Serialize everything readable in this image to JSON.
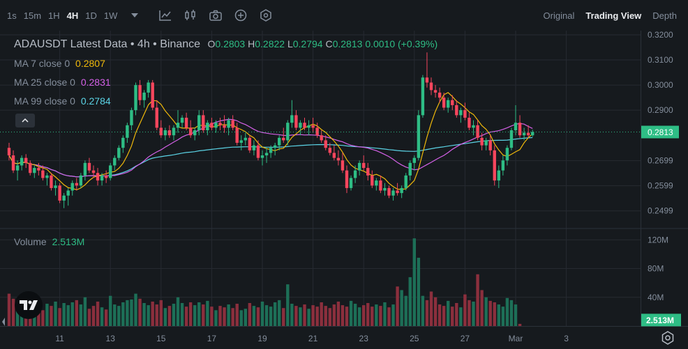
{
  "toolbar": {
    "intervals": [
      "1s",
      "15m",
      "1H",
      "4H",
      "1D",
      "1W"
    ],
    "active_interval": "4H",
    "views": [
      "Original",
      "Trading View",
      "Depth"
    ],
    "active_view": "Trading View"
  },
  "legend": {
    "title": "ADAUSDT Latest Data • 4h • Binance",
    "ohlc": [
      {
        "label": "O",
        "value": "0.2803"
      },
      {
        "label": "H",
        "value": "0.2822"
      },
      {
        "label": "L",
        "value": "0.2794"
      },
      {
        "label": "C",
        "value": "0.2813"
      }
    ],
    "change": "0.0010 (+0.39%)",
    "ma": [
      {
        "label": "MA 7 close 0",
        "value": "0.2807",
        "color": "#f0b90b"
      },
      {
        "label": "MA 25 close 0",
        "value": "0.2831",
        "color": "#d561e8"
      },
      {
        "label": "MA 99 close 0",
        "value": "0.2784",
        "color": "#5bd4e6"
      }
    ],
    "volume_label": "Volume",
    "volume_value": "2.513M"
  },
  "colors": {
    "up": "#2ebd85",
    "down": "#f6465d",
    "vol_up": "#1d6f57",
    "vol_down": "#8b2f3d",
    "background": "#161a1e",
    "grid": "#262a31"
  },
  "chart_data": {
    "type": "candlestick",
    "symbol": "ADAUSDT",
    "interval": "4h",
    "exchange": "Binance",
    "price_axis_ticks": [
      "0.3200",
      "0.3100",
      "0.3000",
      "0.2900",
      "0.2699",
      "0.2599",
      "0.2499"
    ],
    "price_range": [
      0.244,
      0.32
    ],
    "volume_axis_ticks": [
      "120M",
      "80M",
      "40M"
    ],
    "volume_range": [
      0,
      128
    ],
    "last_price": "0.2813",
    "last_volume": "2.513M",
    "x_tick_labels": [
      "11",
      "13",
      "15",
      "17",
      "19",
      "21",
      "23",
      "25",
      "27",
      "Mar",
      "3"
    ],
    "x_tick_index": [
      12,
      24,
      36,
      48,
      60,
      72,
      84,
      96,
      108,
      120,
      132
    ],
    "candles": [
      [
        0.275,
        0.277,
        0.27,
        0.272
      ],
      [
        0.272,
        0.274,
        0.265,
        0.266
      ],
      [
        0.266,
        0.27,
        0.262,
        0.268
      ],
      [
        0.268,
        0.272,
        0.266,
        0.271
      ],
      [
        0.271,
        0.2725,
        0.267,
        0.269
      ],
      [
        0.269,
        0.27,
        0.264,
        0.265
      ],
      [
        0.265,
        0.268,
        0.263,
        0.267
      ],
      [
        0.267,
        0.269,
        0.264,
        0.266
      ],
      [
        0.266,
        0.268,
        0.262,
        0.263
      ],
      [
        0.263,
        0.265,
        0.26,
        0.264
      ],
      [
        0.264,
        0.265,
        0.258,
        0.259
      ],
      [
        0.259,
        0.262,
        0.256,
        0.26
      ],
      [
        0.26,
        0.261,
        0.253,
        0.254
      ],
      [
        0.254,
        0.257,
        0.251,
        0.256
      ],
      [
        0.256,
        0.259,
        0.252,
        0.258
      ],
      [
        0.258,
        0.262,
        0.256,
        0.261
      ],
      [
        0.261,
        0.263,
        0.258,
        0.26
      ],
      [
        0.26,
        0.265,
        0.259,
        0.264
      ],
      [
        0.264,
        0.27,
        0.262,
        0.269
      ],
      [
        0.269,
        0.271,
        0.265,
        0.266
      ],
      [
        0.266,
        0.268,
        0.263,
        0.265
      ],
      [
        0.265,
        0.267,
        0.26,
        0.262
      ],
      [
        0.262,
        0.265,
        0.26,
        0.264
      ],
      [
        0.264,
        0.266,
        0.261,
        0.263
      ],
      [
        0.263,
        0.269,
        0.262,
        0.268
      ],
      [
        0.268,
        0.272,
        0.266,
        0.271
      ],
      [
        0.271,
        0.276,
        0.27,
        0.275
      ],
      [
        0.275,
        0.28,
        0.273,
        0.279
      ],
      [
        0.279,
        0.285,
        0.277,
        0.284
      ],
      [
        0.284,
        0.291,
        0.282,
        0.29
      ],
      [
        0.29,
        0.301,
        0.288,
        0.3
      ],
      [
        0.3,
        0.302,
        0.292,
        0.294
      ],
      [
        0.294,
        0.298,
        0.291,
        0.297
      ],
      [
        0.297,
        0.302,
        0.295,
        0.301
      ],
      [
        0.301,
        0.302,
        0.29,
        0.291
      ],
      [
        0.291,
        0.294,
        0.282,
        0.283
      ],
      [
        0.283,
        0.286,
        0.279,
        0.28
      ],
      [
        0.28,
        0.283,
        0.278,
        0.282
      ],
      [
        0.282,
        0.284,
        0.279,
        0.28
      ],
      [
        0.28,
        0.284,
        0.278,
        0.283
      ],
      [
        0.283,
        0.29,
        0.281,
        0.285
      ],
      [
        0.285,
        0.288,
        0.283,
        0.287
      ],
      [
        0.287,
        0.289,
        0.282,
        0.283
      ],
      [
        0.283,
        0.286,
        0.279,
        0.28
      ],
      [
        0.28,
        0.283,
        0.278,
        0.282
      ],
      [
        0.282,
        0.29,
        0.28,
        0.288
      ],
      [
        0.288,
        0.29,
        0.281,
        0.282
      ],
      [
        0.282,
        0.286,
        0.28,
        0.285
      ],
      [
        0.285,
        0.287,
        0.282,
        0.283
      ],
      [
        0.283,
        0.286,
        0.281,
        0.285
      ],
      [
        0.285,
        0.287,
        0.282,
        0.284
      ],
      [
        0.284,
        0.288,
        0.281,
        0.283
      ],
      [
        0.283,
        0.287,
        0.28,
        0.286
      ],
      [
        0.286,
        0.288,
        0.282,
        0.283
      ],
      [
        0.283,
        0.285,
        0.276,
        0.277
      ],
      [
        0.277,
        0.28,
        0.274,
        0.278
      ],
      [
        0.278,
        0.281,
        0.276,
        0.279
      ],
      [
        0.279,
        0.28,
        0.273,
        0.274
      ],
      [
        0.274,
        0.278,
        0.272,
        0.276
      ],
      [
        0.276,
        0.278,
        0.27,
        0.271
      ],
      [
        0.271,
        0.274,
        0.268,
        0.272
      ],
      [
        0.272,
        0.275,
        0.269,
        0.273
      ],
      [
        0.273,
        0.276,
        0.271,
        0.275
      ],
      [
        0.275,
        0.277,
        0.272,
        0.276
      ],
      [
        0.276,
        0.28,
        0.274,
        0.279
      ],
      [
        0.279,
        0.283,
        0.277,
        0.278
      ],
      [
        0.278,
        0.286,
        0.276,
        0.285
      ],
      [
        0.285,
        0.294,
        0.283,
        0.288
      ],
      [
        0.288,
        0.29,
        0.282,
        0.283
      ],
      [
        0.283,
        0.286,
        0.28,
        0.285
      ],
      [
        0.285,
        0.287,
        0.282,
        0.283
      ],
      [
        0.283,
        0.286,
        0.28,
        0.284
      ],
      [
        0.284,
        0.287,
        0.281,
        0.283
      ],
      [
        0.283,
        0.285,
        0.279,
        0.28
      ],
      [
        0.28,
        0.282,
        0.277,
        0.278
      ],
      [
        0.278,
        0.28,
        0.274,
        0.275
      ],
      [
        0.275,
        0.277,
        0.272,
        0.273
      ],
      [
        0.273,
        0.276,
        0.27,
        0.271
      ],
      [
        0.271,
        0.274,
        0.268,
        0.27
      ],
      [
        0.27,
        0.273,
        0.265,
        0.266
      ],
      [
        0.266,
        0.268,
        0.257,
        0.259
      ],
      [
        0.259,
        0.264,
        0.258,
        0.263
      ],
      [
        0.263,
        0.268,
        0.261,
        0.266
      ],
      [
        0.266,
        0.27,
        0.264,
        0.269
      ],
      [
        0.269,
        0.272,
        0.266,
        0.267
      ],
      [
        0.267,
        0.269,
        0.262,
        0.264
      ],
      [
        0.264,
        0.266,
        0.259,
        0.26
      ],
      [
        0.26,
        0.263,
        0.258,
        0.262
      ],
      [
        0.262,
        0.264,
        0.257,
        0.258
      ],
      [
        0.258,
        0.261,
        0.256,
        0.259
      ],
      [
        0.259,
        0.26,
        0.255,
        0.256
      ],
      [
        0.256,
        0.259,
        0.254,
        0.258
      ],
      [
        0.258,
        0.261,
        0.256,
        0.257
      ],
      [
        0.257,
        0.26,
        0.255,
        0.259
      ],
      [
        0.259,
        0.265,
        0.258,
        0.264
      ],
      [
        0.264,
        0.27,
        0.262,
        0.269
      ],
      [
        0.269,
        0.272,
        0.266,
        0.271
      ],
      [
        0.271,
        0.29,
        0.27,
        0.288
      ],
      [
        0.288,
        0.304,
        0.287,
        0.303
      ],
      [
        0.303,
        0.313,
        0.299,
        0.301
      ],
      [
        0.301,
        0.303,
        0.296,
        0.298
      ],
      [
        0.298,
        0.3,
        0.295,
        0.297
      ],
      [
        0.297,
        0.299,
        0.293,
        0.295
      ],
      [
        0.295,
        0.297,
        0.29,
        0.291
      ],
      [
        0.291,
        0.295,
        0.289,
        0.294
      ],
      [
        0.294,
        0.296,
        0.29,
        0.292
      ],
      [
        0.292,
        0.294,
        0.287,
        0.288
      ],
      [
        0.288,
        0.291,
        0.285,
        0.29
      ],
      [
        0.29,
        0.293,
        0.286,
        0.287
      ],
      [
        0.287,
        0.289,
        0.282,
        0.283
      ],
      [
        0.283,
        0.286,
        0.28,
        0.284
      ],
      [
        0.284,
        0.286,
        0.278,
        0.279
      ],
      [
        0.279,
        0.281,
        0.274,
        0.276
      ],
      [
        0.276,
        0.279,
        0.274,
        0.278
      ],
      [
        0.278,
        0.28,
        0.272,
        0.274
      ],
      [
        0.274,
        0.276,
        0.26,
        0.262
      ],
      [
        0.262,
        0.268,
        0.259,
        0.266
      ],
      [
        0.266,
        0.272,
        0.264,
        0.27
      ],
      [
        0.27,
        0.276,
        0.268,
        0.275
      ],
      [
        0.275,
        0.283,
        0.274,
        0.282
      ],
      [
        0.282,
        0.292,
        0.28,
        0.285
      ],
      [
        0.285,
        0.288,
        0.279,
        0.28
      ],
      [
        0.28,
        0.283,
        0.278,
        0.281
      ],
      [
        0.281,
        0.284,
        0.279,
        0.28
      ],
      [
        0.28,
        0.2822,
        0.2794,
        0.2813
      ]
    ],
    "volumes": [
      45,
      38,
      30,
      27,
      35,
      25,
      24,
      26,
      22,
      31,
      28,
      34,
      25,
      32,
      29,
      33,
      36,
      30,
      40,
      24,
      28,
      34,
      26,
      23,
      42,
      30,
      28,
      33,
      36,
      37,
      45,
      38,
      32,
      29,
      34,
      30,
      36,
      25,
      28,
      31,
      40,
      32,
      27,
      33,
      29,
      33,
      30,
      35,
      27,
      22,
      28,
      26,
      30,
      25,
      31,
      22,
      24,
      32,
      28,
      26,
      34,
      29,
      27,
      33,
      36,
      25,
      58,
      31,
      28,
      26,
      30,
      24,
      29,
      27,
      33,
      28,
      25,
      30,
      34,
      29,
      27,
      35,
      31,
      26,
      29,
      32,
      27,
      30,
      28,
      33,
      26,
      30,
      55,
      50,
      42,
      68,
      122,
      95,
      42,
      36,
      48,
      40,
      30,
      28,
      35,
      27,
      32,
      26,
      44,
      36,
      34,
      72,
      50,
      40,
      35,
      33,
      30,
      27,
      39,
      36,
      30,
      3
    ]
  }
}
